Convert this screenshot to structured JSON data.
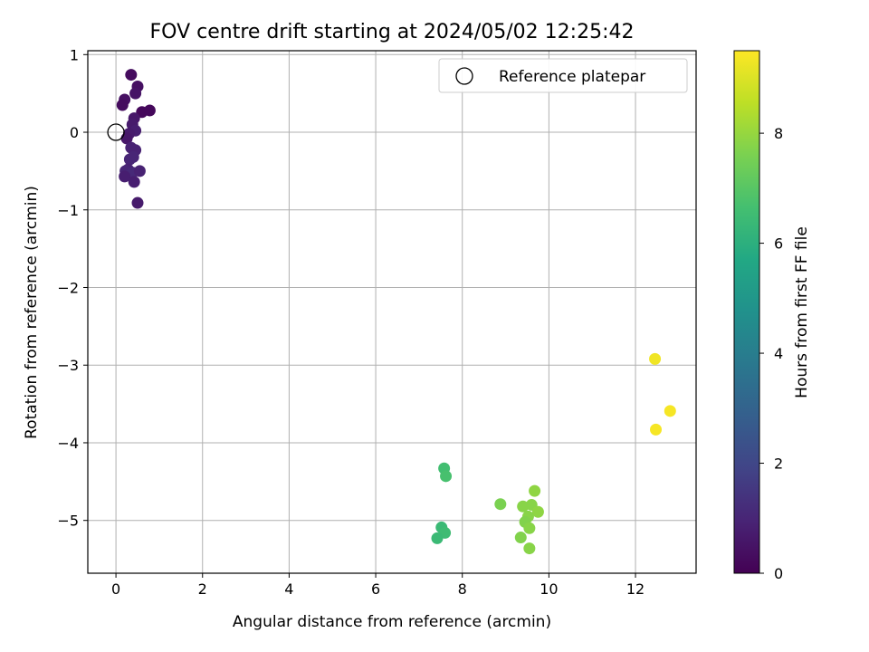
{
  "chart_data": {
    "type": "scatter",
    "title": "FOV centre drift starting at 2024/05/02 12:25:42",
    "xlabel": "Angular distance from reference (arcmin)",
    "ylabel": "Rotation from reference (arcmin)",
    "xlim": [
      -0.65,
      13.4
    ],
    "ylim": [
      -5.68,
      1.05
    ],
    "xticks": [
      0,
      2,
      4,
      6,
      8,
      10,
      12
    ],
    "yticks": [
      1,
      0,
      -1,
      -2,
      -3,
      -4,
      -5
    ],
    "grid": true,
    "legend": {
      "position": "top-right",
      "entries": [
        "Reference platepar"
      ]
    },
    "reference_point": {
      "x": 0,
      "y": 0
    },
    "colorbar": {
      "label": "Hours from first FF file",
      "range": [
        0,
        9.5
      ],
      "ticks": [
        0,
        2,
        4,
        6,
        8
      ],
      "colormap": "viridis"
    },
    "points": [
      {
        "x": 0.35,
        "y": 0.74,
        "hours": 0.3
      },
      {
        "x": 0.5,
        "y": 0.59,
        "hours": 0.4
      },
      {
        "x": 0.45,
        "y": 0.5,
        "hours": 0.5
      },
      {
        "x": 0.2,
        "y": 0.42,
        "hours": 0.4
      },
      {
        "x": 0.15,
        "y": 0.35,
        "hours": 0.3
      },
      {
        "x": 0.6,
        "y": 0.26,
        "hours": 0.2
      },
      {
        "x": 0.78,
        "y": 0.28,
        "hours": 0.2
      },
      {
        "x": 0.42,
        "y": 0.18,
        "hours": 0.6
      },
      {
        "x": 0.38,
        "y": 0.1,
        "hours": 0.7
      },
      {
        "x": 0.45,
        "y": 0.02,
        "hours": 0.8
      },
      {
        "x": 0.3,
        "y": -0.02,
        "hours": 0.7
      },
      {
        "x": 0.25,
        "y": -0.08,
        "hours": 0.6
      },
      {
        "x": 0.35,
        "y": -0.2,
        "hours": 0.9
      },
      {
        "x": 0.45,
        "y": -0.23,
        "hours": 0.9
      },
      {
        "x": 0.4,
        "y": -0.32,
        "hours": 1.0
      },
      {
        "x": 0.32,
        "y": -0.35,
        "hours": 1.0
      },
      {
        "x": 0.28,
        "y": -0.48,
        "hours": 0.9
      },
      {
        "x": 0.22,
        "y": -0.5,
        "hours": 1.0
      },
      {
        "x": 0.38,
        "y": -0.52,
        "hours": 1.1
      },
      {
        "x": 0.55,
        "y": -0.5,
        "hours": 0.9
      },
      {
        "x": 0.2,
        "y": -0.57,
        "hours": 0.8
      },
      {
        "x": 0.42,
        "y": -0.64,
        "hours": 0.8
      },
      {
        "x": 0.5,
        "y": -0.91,
        "hours": 0.7
      },
      {
        "x": 7.58,
        "y": -4.33,
        "hours": 6.6
      },
      {
        "x": 7.62,
        "y": -4.43,
        "hours": 6.7
      },
      {
        "x": 7.52,
        "y": -5.09,
        "hours": 6.4
      },
      {
        "x": 7.6,
        "y": -5.16,
        "hours": 6.5
      },
      {
        "x": 7.42,
        "y": -5.23,
        "hours": 6.4
      },
      {
        "x": 8.88,
        "y": -4.79,
        "hours": 7.6
      },
      {
        "x": 9.4,
        "y": -4.82,
        "hours": 7.8
      },
      {
        "x": 9.6,
        "y": -4.8,
        "hours": 7.8
      },
      {
        "x": 9.67,
        "y": -4.62,
        "hours": 7.9
      },
      {
        "x": 9.75,
        "y": -4.89,
        "hours": 7.9
      },
      {
        "x": 9.52,
        "y": -4.95,
        "hours": 7.8
      },
      {
        "x": 9.45,
        "y": -5.02,
        "hours": 7.7
      },
      {
        "x": 9.55,
        "y": -5.1,
        "hours": 7.8
      },
      {
        "x": 9.35,
        "y": -5.22,
        "hours": 7.7
      },
      {
        "x": 9.55,
        "y": -5.36,
        "hours": 7.8
      },
      {
        "x": 12.45,
        "y": -2.92,
        "hours": 9.3
      },
      {
        "x": 12.8,
        "y": -3.59,
        "hours": 9.4
      },
      {
        "x": 12.47,
        "y": -3.83,
        "hours": 9.4
      }
    ]
  }
}
